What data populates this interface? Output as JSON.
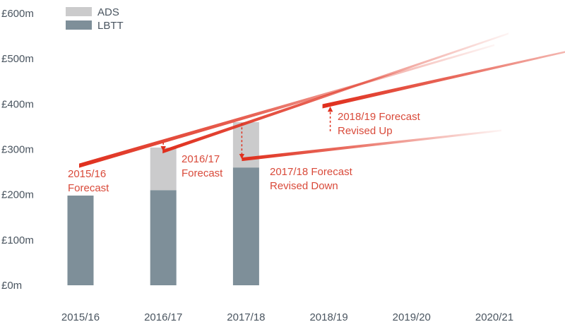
{
  "colors": {
    "ads": "#cbcbcc",
    "lbtt": "#7e8f99",
    "forecast": "#e0301e",
    "text": "#4a5560",
    "annotation": "#d94a3a"
  },
  "chart_data": {
    "type": "bar",
    "categories": [
      "2015/16",
      "2016/17",
      "2017/18",
      "2018/19",
      "2019/20",
      "2020/21"
    ],
    "y_ticks": [
      "£0m",
      "£100m",
      "£200m",
      "£300m",
      "£400m",
      "£500m",
      "£600m"
    ],
    "ylim": [
      0,
      600
    ],
    "grid": false,
    "legend_position": "top-left",
    "series": [
      {
        "name": "LBTT",
        "stack": "revenue",
        "values": [
          198,
          210,
          260,
          null,
          null,
          null
        ]
      },
      {
        "name": "ADS",
        "stack": "revenue",
        "values": [
          0,
          94,
          100,
          null,
          null,
          null
        ]
      }
    ],
    "forecasts": [
      {
        "label": "2015/16 Forecast",
        "line1": "2015/16",
        "line2": "Forecast",
        "x": [
          "2015/16",
          "2020/21"
        ],
        "y": [
          264,
          530
        ]
      },
      {
        "label": "2016/17 Forecast",
        "line1": "2016/17",
        "line2": "Forecast",
        "x": [
          "2016/17",
          "2020/21"
        ],
        "y": [
          295,
          545
        ]
      },
      {
        "label": "2017/18 Forecast Revised Down",
        "line1": "2017/18 Forecast",
        "line2": "Revised Down",
        "x": [
          "2017/18",
          "2020/21"
        ],
        "y": [
          278,
          340
        ]
      },
      {
        "label": "2018/19 Forecast Revised Up",
        "line1": "2018/19 Forecast",
        "line2": "Revised Up",
        "x": [
          "2018/19",
          "2020/21"
        ],
        "y": [
          395,
          480
        ]
      }
    ],
    "revisions": [
      {
        "category": "2016/17",
        "from": 315,
        "to": 295
      },
      {
        "category": "2017/18",
        "from": 358,
        "to": 278
      },
      {
        "category": "2018/19",
        "from": 340,
        "to": 395
      }
    ]
  }
}
